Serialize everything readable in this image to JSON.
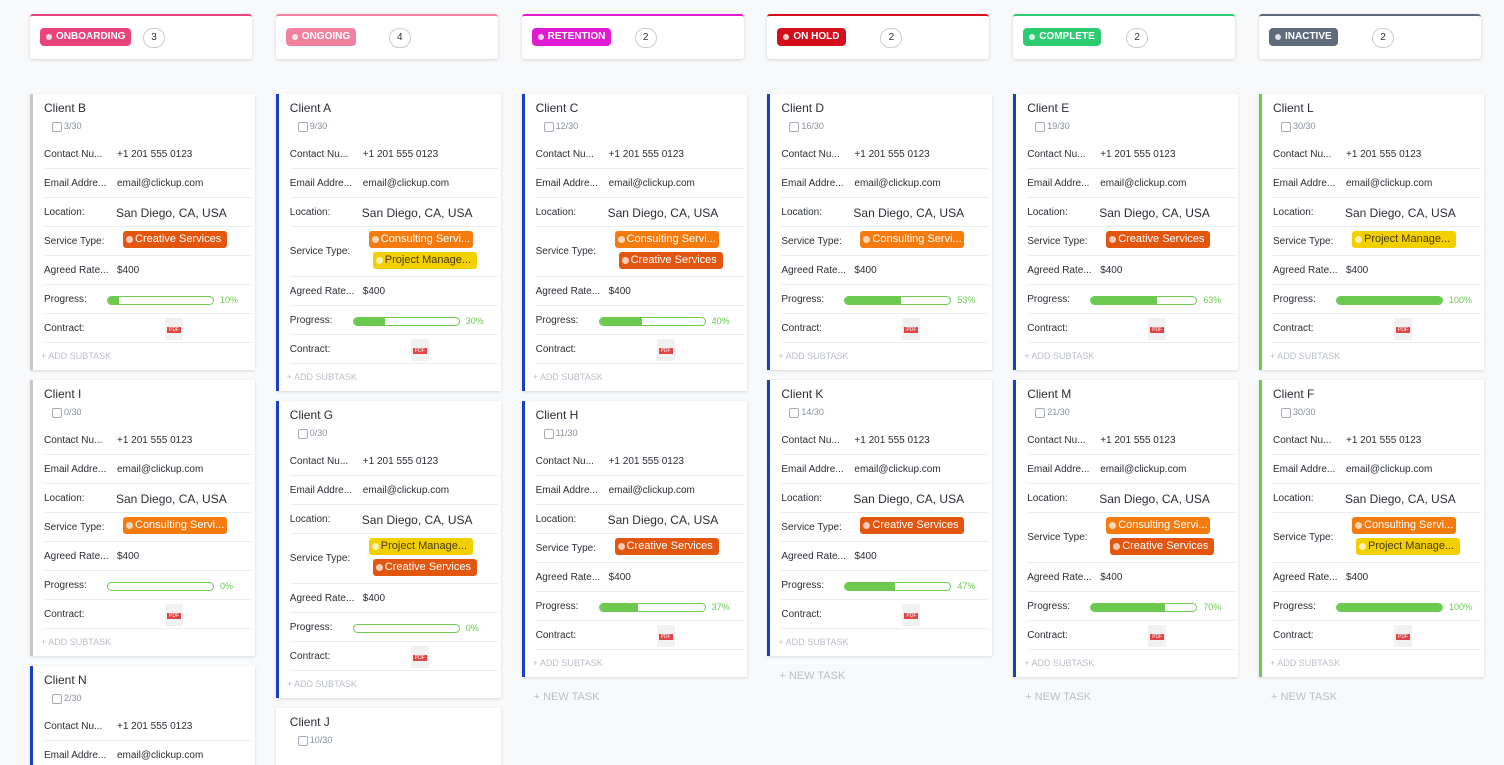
{
  "field_labels": [
    "Contact Nu...",
    "Email Addre...",
    "Location:",
    "Service Type:",
    "Agreed Rate...",
    "Progress:",
    "Contract:"
  ],
  "add_subtask": "+ ADD SUBTASK",
  "columns": [
    {
      "status": "ONBOARDING",
      "color": "#e8447a",
      "count": 3,
      "cards": [
        {
          "name": "Client B",
          "accent": "#c8c8c8",
          "subtasks": "3/30",
          "contact": "+1 201 555 0123",
          "email": "email@clickup.com",
          "location": "San Diego, CA, USA",
          "services": [
            {
              "label": "Creative Services",
              "color": "#e2560f"
            }
          ],
          "rate": "$400",
          "progress": {
            "value": 10,
            "label": "10%"
          },
          "contract": "PDF"
        },
        {
          "name": "Client I",
          "accent": "#c8c8c8",
          "subtasks": "0/30",
          "contact": "+1 201 555 0123",
          "email": "email@clickup.com",
          "location": "San Diego, CA, USA",
          "services": [
            {
              "label": "Consulting Servi...",
              "color": "#f47b10"
            }
          ],
          "rate": "$400",
          "progress": {
            "value": 0,
            "label": "0%"
          },
          "contract": "PDF"
        },
        {
          "name": "Client N",
          "accent": "#1a3fc4",
          "subtasks": "2/30",
          "contact": "+1 201 555 0123",
          "email": "email@clickup.com"
        }
      ]
    },
    {
      "status": "ONGOING",
      "color": "#f0829f",
      "count": 4,
      "cards": [
        {
          "name": "Client A",
          "accent": "#1a3fc4",
          "subtasks": "9/30",
          "contact": "+1 201 555 0123",
          "email": "email@clickup.com",
          "location": "San Diego, CA, USA",
          "services": [
            {
              "label": "Consulting Servi...",
              "color": "#f47b10"
            },
            {
              "label": "Project Manage...",
              "color": "#f2d000"
            }
          ],
          "rate": "$400",
          "progress": {
            "value": 30,
            "label": "30%"
          },
          "contract": "PDF"
        },
        {
          "name": "Client G",
          "accent": "#1a3fc4",
          "subtasks": "0/30",
          "contact": "+1 201 555 0123",
          "email": "email@clickup.com",
          "location": "San Diego, CA, USA",
          "services": [
            {
              "label": "Project Manage...",
              "color": "#f2d000"
            },
            {
              "label": "Creative Services",
              "color": "#e2560f"
            }
          ],
          "rate": "$400",
          "progress": {
            "value": 0,
            "label": "0%"
          },
          "contract": "PDF"
        },
        {
          "name": "Client J",
          "accent": "#ffffff",
          "subtasks": "10/30"
        }
      ]
    },
    {
      "status": "RETENTION",
      "color": "#e11bd4",
      "count": 2,
      "footer": "+ NEW TASK",
      "cards": [
        {
          "name": "Client C",
          "accent": "#1a3fc4",
          "subtasks": "12/30",
          "contact": "+1 201 555 0123",
          "email": "email@clickup.com",
          "location": "San Diego, CA, USA",
          "services": [
            {
              "label": "Consulting Servi...",
              "color": "#f47b10"
            },
            {
              "label": "Creative Services",
              "color": "#e2560f"
            }
          ],
          "rate": "$400",
          "progress": {
            "value": 40,
            "label": "40%"
          },
          "contract": "PDF"
        },
        {
          "name": "Client H",
          "accent": "#1a3fc4",
          "subtasks": "11/30",
          "contact": "+1 201 555 0123",
          "email": "email@clickup.com",
          "location": "San Diego, CA, USA",
          "services": [
            {
              "label": "Creative Services",
              "color": "#e2560f"
            }
          ],
          "rate": "$400",
          "progress": {
            "value": 37,
            "label": "37%"
          },
          "contract": "PDF"
        }
      ]
    },
    {
      "status": "ON HOLD",
      "color": "#d40f1b",
      "count": 2,
      "footer": "+ NEW TASK",
      "cards": [
        {
          "name": "Client D",
          "accent": "#1a3fc4",
          "subtasks": "16/30",
          "contact": "+1 201 555 0123",
          "email": "email@clickup.com",
          "location": "San Diego, CA, USA",
          "services": [
            {
              "label": "Consulting Servi...",
              "color": "#f47b10"
            }
          ],
          "rate": "$400",
          "progress": {
            "value": 53,
            "label": "53%"
          },
          "contract": "PDF"
        },
        {
          "name": "Client K",
          "accent": "#1a3fc4",
          "subtasks": "14/30",
          "contact": "+1 201 555 0123",
          "email": "email@clickup.com",
          "location": "San Diego, CA, USA",
          "services": [
            {
              "label": "Creative Services",
              "color": "#e2560f"
            }
          ],
          "rate": "$400",
          "progress": {
            "value": 47,
            "label": "47%"
          },
          "contract": "PDF"
        }
      ]
    },
    {
      "status": "COMPLETE",
      "color": "#2ecc71",
      "count": 2,
      "footer": "+ NEW TASK",
      "cards": [
        {
          "name": "Client E",
          "accent": "#1a3fc4",
          "subtasks": "19/30",
          "contact": "+1 201 555 0123",
          "email": "email@clickup.com",
          "location": "San Diego, CA, USA",
          "services": [
            {
              "label": "Creative Services",
              "color": "#e2560f"
            }
          ],
          "rate": "$400",
          "progress": {
            "value": 63,
            "label": "63%"
          },
          "contract": "PDF"
        },
        {
          "name": "Client M",
          "accent": "#1a3fc4",
          "subtasks": "21/30",
          "contact": "+1 201 555 0123",
          "email": "email@clickup.com",
          "location": "San Diego, CA, USA",
          "services": [
            {
              "label": "Consulting Servi...",
              "color": "#f47b10"
            },
            {
              "label": "Creative Services",
              "color": "#e2560f"
            }
          ],
          "rate": "$400",
          "progress": {
            "value": 70,
            "label": "70%"
          },
          "contract": "PDF"
        }
      ]
    },
    {
      "status": "INACTIVE",
      "color": "#5f6b7a",
      "count": 2,
      "footer": "+ NEW TASK",
      "cards": [
        {
          "name": "Client L",
          "accent": "#6bc950",
          "subtasks": "30/30",
          "contact": "+1 201 555 0123",
          "email": "email@clickup.com",
          "location": "San Diego, CA, USA",
          "services": [
            {
              "label": "Project Manage...",
              "color": "#f2d000"
            }
          ],
          "rate": "$400",
          "progress": {
            "value": 100,
            "label": "100%"
          },
          "contract": "PDF"
        },
        {
          "name": "Client F",
          "accent": "#6bc950",
          "subtasks": "30/30",
          "contact": "+1 201 555 0123",
          "email": "email@clickup.com",
          "location": "San Diego, CA, USA",
          "services": [
            {
              "label": "Consulting Servi...",
              "color": "#f47b10"
            },
            {
              "label": "Project Manage...",
              "color": "#f2d000"
            }
          ],
          "rate": "$400",
          "progress": {
            "value": 100,
            "label": "100%"
          },
          "contract": "PDF"
        }
      ]
    }
  ]
}
